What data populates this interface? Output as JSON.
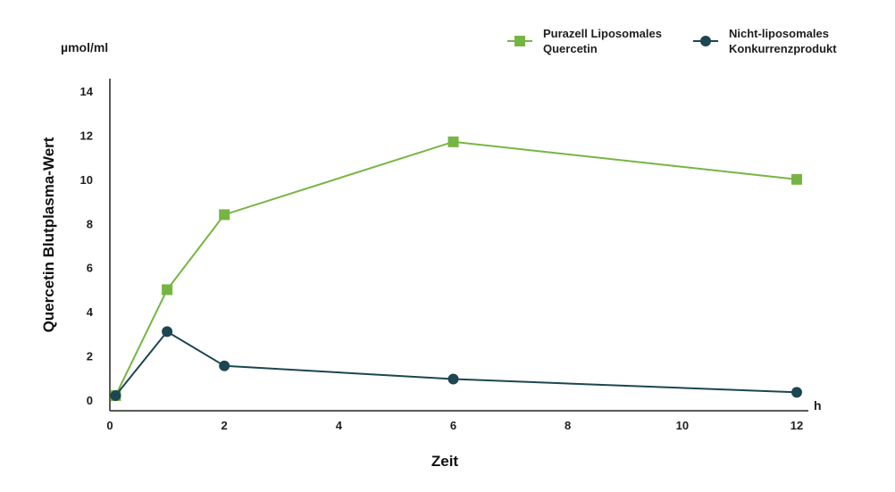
{
  "chart_data": {
    "type": "line",
    "title": "",
    "xlabel": "Zeit",
    "ylabel": "Quercetin Blutplasma-Wert",
    "y_unit": "µmol/ml",
    "x_unit": "h",
    "xlim": [
      0,
      12
    ],
    "ylim": [
      0,
      14
    ],
    "x_ticks": [
      0,
      2,
      4,
      6,
      8,
      10,
      12
    ],
    "y_ticks": [
      0,
      2,
      4,
      6,
      8,
      10,
      12,
      14
    ],
    "grid": false,
    "legend_position": "top-right",
    "series": [
      {
        "name_lines": [
          "Purazell Liposomales",
          "Quercetin"
        ],
        "marker": "square",
        "color": "#76b543",
        "x": [
          0.1,
          1,
          2,
          6,
          12
        ],
        "y": [
          0.2,
          5.0,
          8.4,
          11.7,
          10.0
        ]
      },
      {
        "name_lines": [
          "Nicht-liposomales",
          "Konkurrenzprodukt"
        ],
        "marker": "circle",
        "color": "#1c4650",
        "x": [
          0.1,
          1,
          2,
          6,
          12
        ],
        "y": [
          0.2,
          3.1,
          1.55,
          0.95,
          0.35
        ]
      }
    ]
  }
}
